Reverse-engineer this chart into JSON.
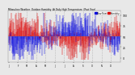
{
  "title": "Milwaukee Weather  Outdoor Humidity  At Daily High Temperature  (Past Year)",
  "ylim": [
    -60,
    60
  ],
  "background_color": "#e8e8e8",
  "plot_bg": "#e8e8e8",
  "bar_color_blue": "#0000dd",
  "bar_color_red": "#dd0000",
  "num_points": 365,
  "seed": 42,
  "legend_label_blue": "Dew Point",
  "legend_label_red": "Humidity",
  "ytick_labels": [
    "100",
    "75",
    "50",
    "25",
    "0"
  ],
  "ytick_vals": [
    50,
    25,
    0,
    -25,
    -50
  ],
  "month_positions": [
    0,
    31,
    59,
    90,
    120,
    151,
    181,
    212,
    243,
    273,
    304,
    334
  ],
  "month_labels": [
    "J",
    "F",
    "M",
    "A",
    "M",
    "J",
    "J",
    "A",
    "S",
    "O",
    "N",
    "D"
  ]
}
